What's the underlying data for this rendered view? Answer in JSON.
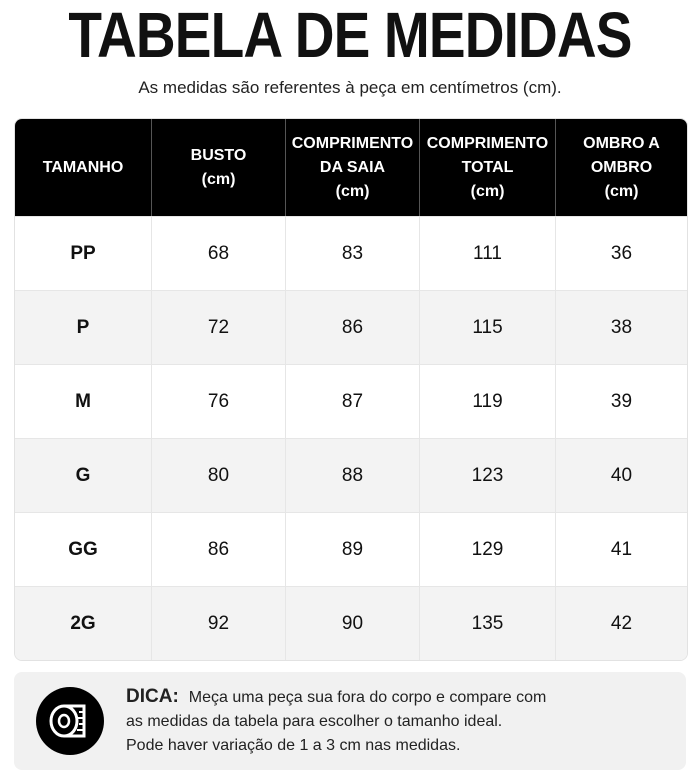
{
  "header": {
    "title": "TABELA DE MEDIDAS",
    "subtitle": "As medidas são referentes à peça em centímetros (cm)."
  },
  "table": {
    "columns": [
      [
        "TAMANHO"
      ],
      [
        "BUSTO",
        "(cm)"
      ],
      [
        "COMPRIMENTO",
        "DA SAIA",
        "(cm)"
      ],
      [
        "COMPRIMENTO",
        "TOTAL",
        "(cm)"
      ],
      [
        "OMBRO A",
        "OMBRO",
        "(cm)"
      ]
    ],
    "rows": [
      [
        "PP",
        68,
        83,
        111,
        36
      ],
      [
        "P",
        72,
        86,
        115,
        38
      ],
      [
        "M",
        76,
        87,
        119,
        39
      ],
      [
        "G",
        80,
        88,
        123,
        40
      ],
      [
        "GG",
        86,
        89,
        129,
        41
      ],
      [
        "2G",
        92,
        90,
        135,
        42
      ]
    ]
  },
  "tip": {
    "label": "DICA:",
    "lines": [
      "Meça uma peça sua fora do corpo e compare com",
      "as medidas da tabela para escolher o tamanho ideal.",
      "Pode haver variação de 1 a 3 cm nas medidas."
    ]
  }
}
